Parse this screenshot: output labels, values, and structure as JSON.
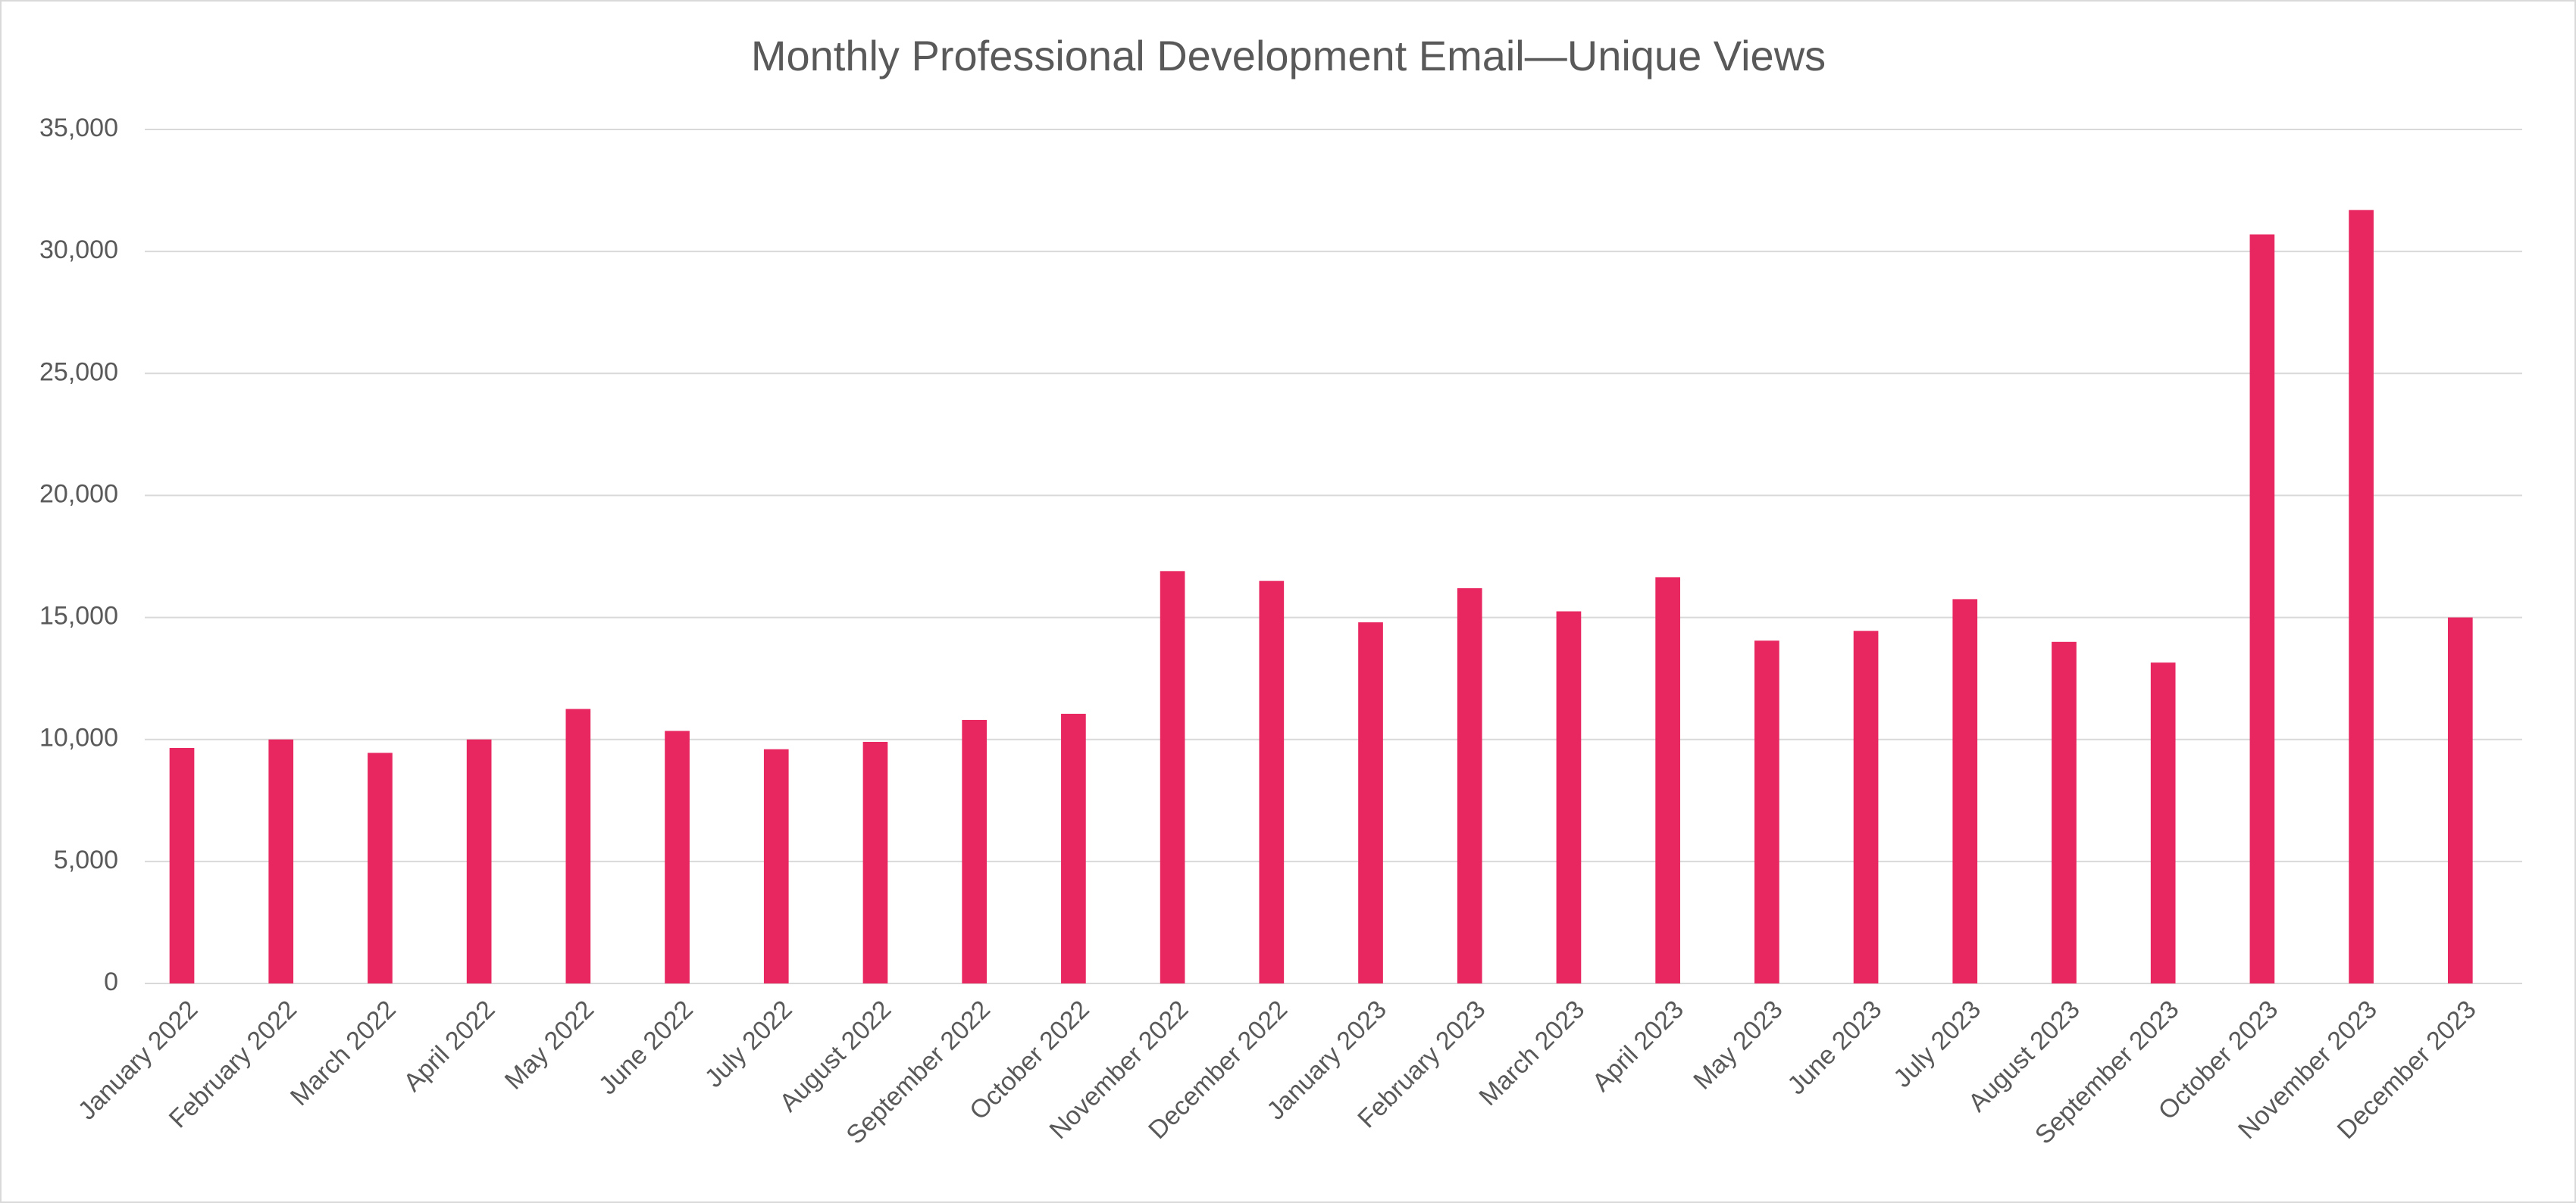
{
  "chart_data": {
    "type": "bar",
    "title": "Monthly Professional Development Email—Unique Views",
    "categories": [
      "January 2022",
      "February 2022",
      "March 2022",
      "April 2022",
      "May 2022",
      "June 2022",
      "July 2022",
      "August 2022",
      "September 2022",
      "October 2022",
      "November 2022",
      "December 2022",
      "January 2023",
      "February 2023",
      "March 2023",
      "April 2023",
      "May 2023",
      "June 2023",
      "July 2023",
      "August 2023",
      "September 2023",
      "October 2023",
      "November 2023",
      "December 2023"
    ],
    "values": [
      9650,
      10000,
      9450,
      10000,
      11250,
      10350,
      9600,
      9900,
      10800,
      11050,
      16900,
      16500,
      14800,
      16200,
      15250,
      16650,
      14050,
      14450,
      15750,
      14000,
      13150,
      30700,
      31700,
      15000
    ],
    "color": "#e8265f",
    "ylim": [
      0,
      35000
    ],
    "yticks": [
      0,
      {
        "value": 5000,
        "label": "5,000"
      },
      {
        "value": 10000,
        "label": "10,000"
      },
      {
        "value": 15000,
        "label": "15,000"
      },
      {
        "value": 20000,
        "label": "20,000"
      },
      {
        "value": 25000,
        "label": "25,000"
      },
      {
        "value": 30000,
        "label": "30,000"
      },
      {
        "value": 35000,
        "label": "35,000"
      }
    ],
    "grid": true
  }
}
